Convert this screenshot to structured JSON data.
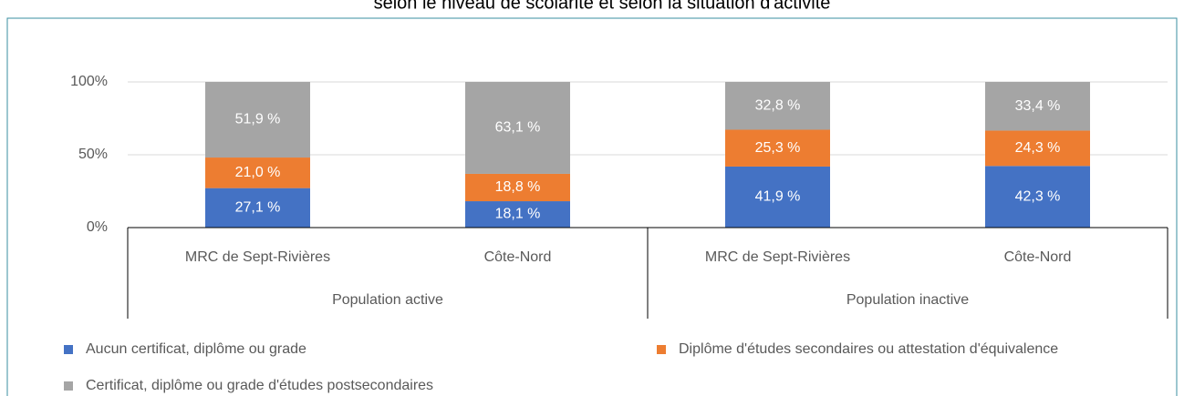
{
  "chart_data": {
    "type": "stacked_bar",
    "title": "selon le niveau de scolarité et selon la situation d'activité",
    "categories": [
      "MRC de Sept-Rivières",
      "Côte-Nord",
      "MRC de Sept-Rivières",
      "Côte-Nord"
    ],
    "groups": [
      "Population active",
      "Population inactive"
    ],
    "series": [
      {
        "name": "Aucun certificat, diplôme ou grade",
        "color": "#4472c4",
        "values": [
          27.1,
          18.1,
          41.9,
          42.3
        ],
        "value_labels": [
          "27,1 %",
          "18,1 %",
          "41,9 %",
          "42,3 %"
        ]
      },
      {
        "name": "Diplôme d'études secondaires ou attestation d'équivalence",
        "color": "#ed7d31",
        "values": [
          21.0,
          18.8,
          25.3,
          24.3
        ],
        "value_labels": [
          "21,0 %",
          "18,8 %",
          "25,3 %",
          "24,3 %"
        ]
      },
      {
        "name": "Certificat, diplôme ou grade d'études postsecondaires",
        "color": "#a5a5a5",
        "values": [
          51.9,
          63.1,
          32.8,
          33.4
        ],
        "value_labels": [
          "51,9 %",
          "63,1 %",
          "32,8 %",
          "33,4 %"
        ]
      }
    ],
    "ylim": [
      0,
      100
    ],
    "yticks": [
      {
        "value": 0,
        "label": "0%"
      },
      {
        "value": 50,
        "label": "50%"
      },
      {
        "value": 100,
        "label": "100%"
      }
    ],
    "grid": true
  }
}
